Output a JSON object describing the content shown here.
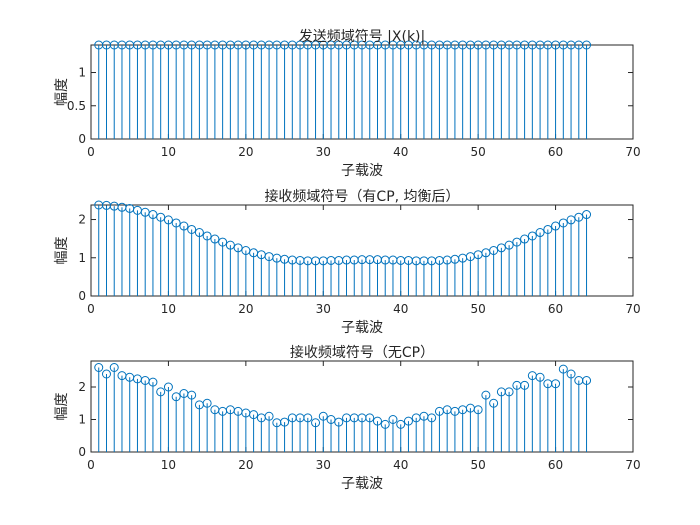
{
  "chart_data": [
    {
      "type": "stem",
      "title": "发送频域符号 |X(k)|",
      "xlabel": "子载波",
      "ylabel": "幅度",
      "xlim": [
        0,
        70
      ],
      "ylim": [
        0,
        1.414
      ],
      "xticks": [
        "0",
        "10",
        "20",
        "30",
        "40",
        "50",
        "60",
        "70"
      ],
      "yticks": [
        "0",
        "0.5",
        "1"
      ],
      "ytick_values": [
        0,
        0.5,
        1
      ],
      "color": "#0072BD",
      "x": [
        1,
        2,
        3,
        4,
        5,
        6,
        7,
        8,
        9,
        10,
        11,
        12,
        13,
        14,
        15,
        16,
        17,
        18,
        19,
        20,
        21,
        22,
        23,
        24,
        25,
        26,
        27,
        28,
        29,
        30,
        31,
        32,
        33,
        34,
        35,
        36,
        37,
        38,
        39,
        40,
        41,
        42,
        43,
        44,
        45,
        46,
        47,
        48,
        49,
        50,
        51,
        52,
        53,
        54,
        55,
        56,
        57,
        58,
        59,
        60,
        61,
        62,
        63,
        64
      ],
      "values": [
        1.414,
        1.414,
        1.414,
        1.414,
        1.414,
        1.414,
        1.414,
        1.414,
        1.414,
        1.414,
        1.414,
        1.414,
        1.414,
        1.414,
        1.414,
        1.414,
        1.414,
        1.414,
        1.414,
        1.414,
        1.414,
        1.414,
        1.414,
        1.414,
        1.414,
        1.414,
        1.414,
        1.414,
        1.414,
        1.414,
        1.414,
        1.414,
        1.414,
        1.414,
        1.414,
        1.414,
        1.414,
        1.414,
        1.414,
        1.414,
        1.414,
        1.414,
        1.414,
        1.414,
        1.414,
        1.414,
        1.414,
        1.414,
        1.414,
        1.414,
        1.414,
        1.414,
        1.414,
        1.414,
        1.414,
        1.414,
        1.414,
        1.414,
        1.414,
        1.414,
        1.414,
        1.414,
        1.414,
        1.414
      ]
    },
    {
      "type": "stem",
      "title": "接收频域符号（有CP, 均衡后）",
      "xlabel": "子载波",
      "ylabel": "幅度",
      "xlim": [
        0,
        70
      ],
      "ylim": [
        0,
        2.38
      ],
      "xticks": [
        "0",
        "10",
        "20",
        "30",
        "40",
        "50",
        "60",
        "70"
      ],
      "yticks": [
        "0",
        "1",
        "2"
      ],
      "ytick_values": [
        0,
        1,
        2
      ],
      "color": "#0072BD",
      "x": [
        1,
        2,
        3,
        4,
        5,
        6,
        7,
        8,
        9,
        10,
        11,
        12,
        13,
        14,
        15,
        16,
        17,
        18,
        19,
        20,
        21,
        22,
        23,
        24,
        25,
        26,
        27,
        28,
        29,
        30,
        31,
        32,
        33,
        34,
        35,
        36,
        37,
        38,
        39,
        40,
        41,
        42,
        43,
        44,
        45,
        46,
        47,
        48,
        49,
        50,
        51,
        52,
        53,
        54,
        55,
        56,
        57,
        58,
        59,
        60,
        61,
        62,
        63,
        64
      ],
      "values": [
        2.38,
        2.37,
        2.35,
        2.32,
        2.29,
        2.24,
        2.19,
        2.13,
        2.06,
        1.99,
        1.91,
        1.83,
        1.74,
        1.66,
        1.57,
        1.49,
        1.41,
        1.33,
        1.26,
        1.19,
        1.13,
        1.08,
        1.03,
        0.99,
        0.96,
        0.94,
        0.93,
        0.92,
        0.92,
        0.92,
        0.93,
        0.93,
        0.94,
        0.94,
        0.95,
        0.95,
        0.95,
        0.94,
        0.94,
        0.93,
        0.93,
        0.92,
        0.92,
        0.92,
        0.93,
        0.94,
        0.96,
        0.99,
        1.03,
        1.08,
        1.13,
        1.19,
        1.26,
        1.33,
        1.41,
        1.49,
        1.57,
        1.66,
        1.74,
        1.83,
        1.91,
        1.99,
        2.06,
        2.13
      ]
    },
    {
      "type": "stem",
      "title": "接收频域符号（无CP）",
      "xlabel": "子载波",
      "ylabel": "幅度",
      "xlim": [
        0,
        70
      ],
      "ylim": [
        0,
        2.8
      ],
      "xticks": [
        "0",
        "10",
        "20",
        "30",
        "40",
        "50",
        "60",
        "70"
      ],
      "yticks": [
        "0",
        "1",
        "2"
      ],
      "ytick_values": [
        0,
        1,
        2
      ],
      "color": "#0072BD",
      "x": [
        1,
        2,
        3,
        4,
        5,
        6,
        7,
        8,
        9,
        10,
        11,
        12,
        13,
        14,
        15,
        16,
        17,
        18,
        19,
        20,
        21,
        22,
        23,
        24,
        25,
        26,
        27,
        28,
        29,
        30,
        31,
        32,
        33,
        34,
        35,
        36,
        37,
        38,
        39,
        40,
        41,
        42,
        43,
        44,
        45,
        46,
        47,
        48,
        49,
        50,
        51,
        52,
        53,
        54,
        55,
        56,
        57,
        58,
        59,
        60,
        61,
        62,
        63,
        64
      ],
      "values": [
        2.6,
        2.4,
        2.6,
        2.35,
        2.3,
        2.25,
        2.2,
        2.15,
        1.85,
        2.0,
        1.7,
        1.8,
        1.75,
        1.45,
        1.5,
        1.3,
        1.25,
        1.3,
        1.25,
        1.2,
        1.15,
        1.05,
        1.1,
        0.9,
        0.92,
        1.05,
        1.05,
        1.05,
        0.9,
        1.1,
        1.0,
        0.92,
        1.05,
        1.05,
        1.05,
        1.05,
        0.95,
        0.85,
        1.0,
        0.85,
        0.95,
        1.05,
        1.1,
        1.05,
        1.25,
        1.3,
        1.25,
        1.3,
        1.35,
        1.3,
        1.75,
        1.5,
        1.85,
        1.85,
        2.05,
        2.05,
        2.35,
        2.3,
        2.1,
        2.1,
        2.55,
        2.4,
        2.2,
        2.2
      ]
    }
  ]
}
